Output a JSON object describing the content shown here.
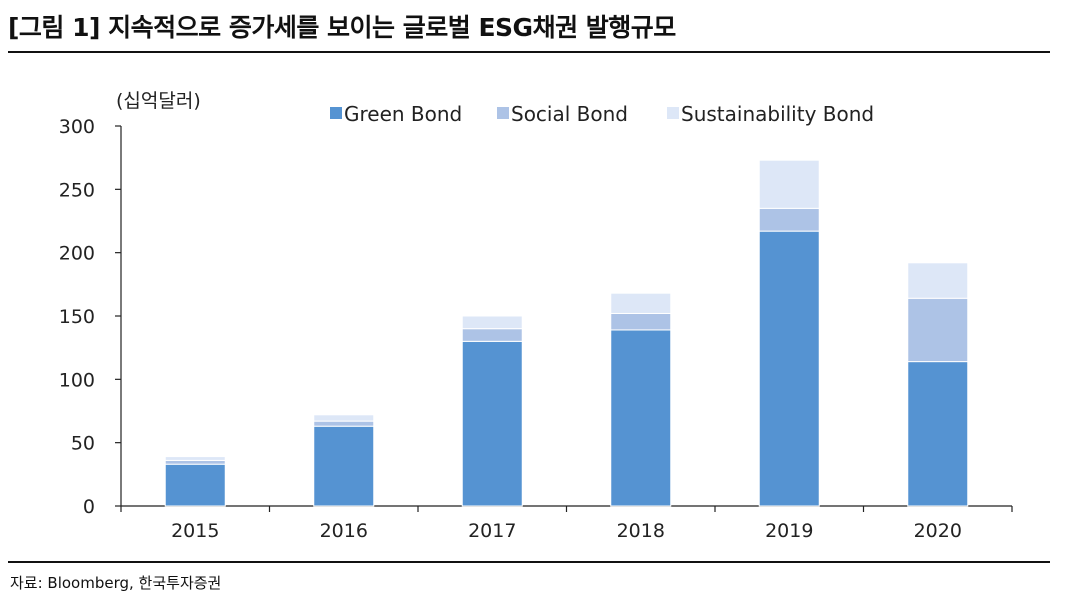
{
  "title": "[그림 1] 지속적으로 증가세를 보이는 글로벌 ESG채권 발행규모",
  "source": "자료: Bloomberg, 한국투자증권",
  "chart_data": {
    "type": "bar",
    "stacked": true,
    "unit_label": "(십억달러)",
    "categories": [
      "2015",
      "2016",
      "2017",
      "2018",
      "2019",
      "2020"
    ],
    "series": [
      {
        "name": "Green Bond",
        "color": "#5593d2",
        "values": [
          33,
          63,
          130,
          139,
          217,
          114
        ]
      },
      {
        "name": "Social Bond",
        "color": "#adc3e6",
        "values": [
          3,
          4,
          10,
          13,
          18,
          50
        ]
      },
      {
        "name": "Sustainability Bond",
        "color": "#dde7f7",
        "values": [
          3,
          5,
          10,
          16,
          38,
          28
        ]
      }
    ],
    "ylim": [
      0,
      300
    ],
    "yticks": [
      "0",
      "50",
      "100",
      "150",
      "200",
      "250",
      "300"
    ],
    "grid": false,
    "legend": "top"
  }
}
